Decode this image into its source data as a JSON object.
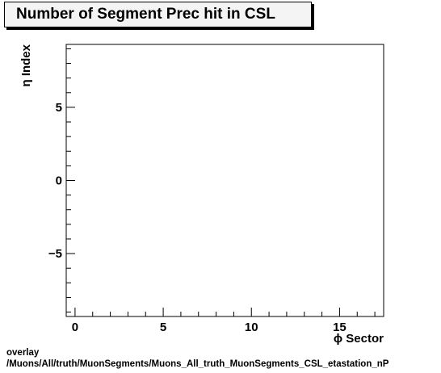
{
  "chart_data": {
    "type": "scatter",
    "title": "Number of Segment Prec hit in CSL",
    "xlabel": "ϕ Sector",
    "ylabel": "η Index",
    "xlim": [
      -0.5,
      17.5
    ],
    "ylim": [
      -9.3,
      9.3
    ],
    "x_ticks": [
      0,
      5,
      10,
      15
    ],
    "x_tick_labels": [
      "0",
      "5",
      "10",
      "15"
    ],
    "y_ticks": [
      -5,
      0,
      5
    ],
    "y_tick_labels": [
      "−5",
      "0",
      "5"
    ],
    "grid": false,
    "series": [
      {
        "x": [],
        "y": []
      }
    ]
  },
  "footer": {
    "line1": "overlay",
    "line2": "/Muons/All/truth/MuonSegments/Muons_All_truth_MuonSegments_CSL_etastation_nP"
  },
  "colors": {
    "frame": "#000000",
    "title_bg": "#f4f4f4",
    "background": "#ffffff"
  }
}
